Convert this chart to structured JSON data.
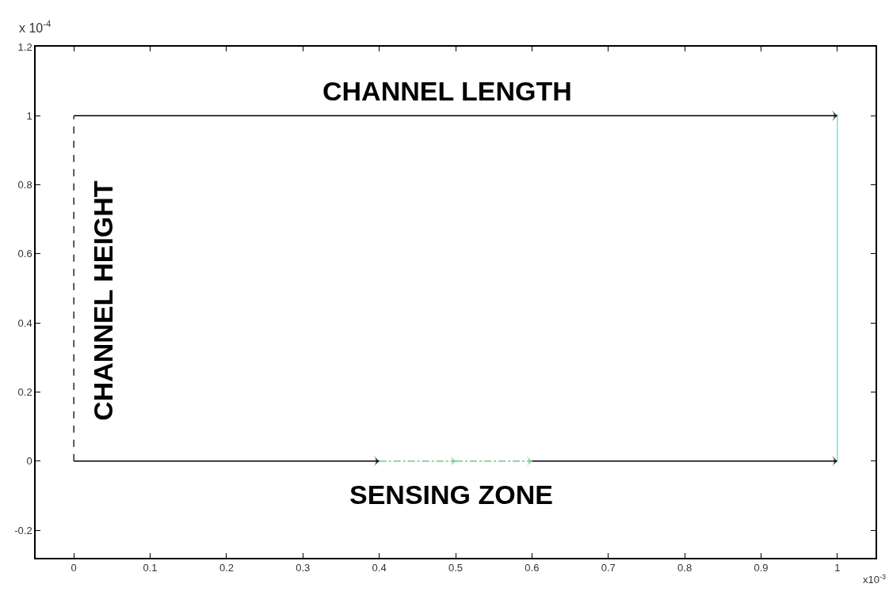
{
  "chart_data": {
    "type": "line",
    "xlim": [
      -0.05,
      1.05
    ],
    "ylim": [
      -0.28,
      1.2
    ],
    "xticks": [
      0,
      0.1,
      0.2,
      0.3,
      0.4,
      0.5,
      0.6,
      0.7,
      0.8,
      0.9,
      1
    ],
    "yticks": [
      -0.2,
      0,
      0.2,
      0.4,
      0.6,
      0.8,
      1,
      1.2
    ],
    "marker": "none",
    "series": [
      {
        "color": "#000000",
        "x": [
          0,
          0.4
        ],
        "values": [
          0,
          0
        ],
        "line_style": "solid"
      },
      {
        "color": "#66cc88",
        "x": [
          0.4,
          0.5
        ],
        "values": [
          0,
          0
        ],
        "line_style": "dashdot"
      },
      {
        "color": "#66cc88",
        "x": [
          0.5,
          0.6
        ],
        "values": [
          0,
          0
        ],
        "line_style": "dashdot"
      },
      {
        "color": "#000000",
        "x": [
          0.6,
          1
        ],
        "values": [
          0,
          0
        ],
        "line_style": "solid"
      },
      {
        "color": "#77dddd",
        "x": [
          1,
          1
        ],
        "values": [
          0,
          1
        ],
        "line_style": "solid"
      },
      {
        "color": "#000000",
        "x": [
          0,
          1
        ],
        "values": [
          1,
          1
        ],
        "line_style": "solid"
      },
      {
        "color": "#222244",
        "x": [
          0,
          0
        ],
        "values": [
          0,
          1
        ],
        "line_style": "dashed"
      }
    ],
    "annotations": [
      "CHANNEL LENGTH",
      "CHANNEL HEIGHT",
      "SENSING ZONE",
      "x 10$^{-4}$",
      "x10$^{-3}$"
    ]
  }
}
